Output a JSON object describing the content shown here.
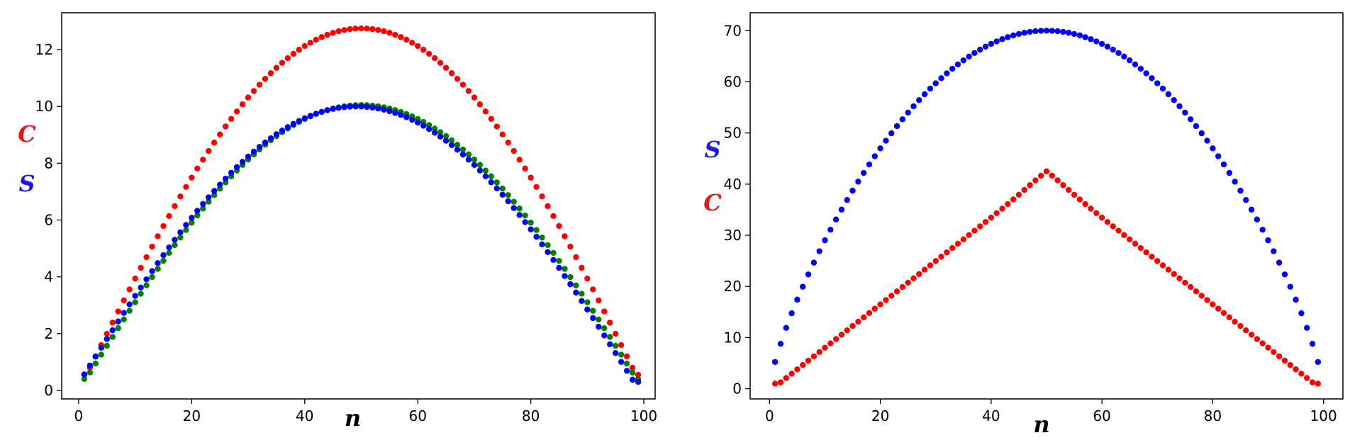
{
  "chart_data": [
    {
      "type": "scatter",
      "xlabel": "n",
      "xlim": [
        -3,
        102
      ],
      "ylim": [
        -0.3,
        13.3
      ],
      "xticks": [
        0,
        20,
        40,
        60,
        80,
        100
      ],
      "yticks": [
        0,
        2,
        4,
        6,
        8,
        10,
        12
      ],
      "x_start": 1,
      "x_end": 99,
      "ylabels": [
        {
          "text": "C",
          "color": "#e31a1c"
        },
        {
          "text": "S",
          "color": "#1a1ae0"
        }
      ],
      "series": [
        {
          "color": "#ff0000",
          "peak": 12.75,
          "peak_x": 50,
          "shape": "sine",
          "end_value": 0.55
        },
        {
          "color": "#008000",
          "peak": 10.05,
          "peak_x": 50,
          "shape": "sine",
          "end_value": 0.4
        },
        {
          "color": "#0000ff",
          "peak": 10.0,
          "peak_x": 50,
          "shape": "sine",
          "end_value": 0.3,
          "shift": 0.8
        }
      ]
    },
    {
      "type": "scatter",
      "xlabel": "n",
      "xlim": [
        -3.5,
        103.5
      ],
      "ylim": [
        -2,
        73.5
      ],
      "xticks": [
        0,
        20,
        40,
        60,
        80,
        100
      ],
      "yticks": [
        0,
        10,
        20,
        30,
        40,
        50,
        60,
        70
      ],
      "x_start": 1,
      "x_end": 99,
      "ylabels": [
        {
          "text": "S",
          "color": "#1a1ae0"
        },
        {
          "text": "C",
          "color": "#e31a1c"
        }
      ],
      "series": [
        {
          "color": "#0000ff",
          "peak": 70.0,
          "peak_x": 50,
          "shape": "arch",
          "end_value": 2.0
        },
        {
          "color": "#ff0000",
          "peak": 42.5,
          "peak_x": 50,
          "shape": "tent",
          "end_value": 1.0
        }
      ]
    }
  ]
}
